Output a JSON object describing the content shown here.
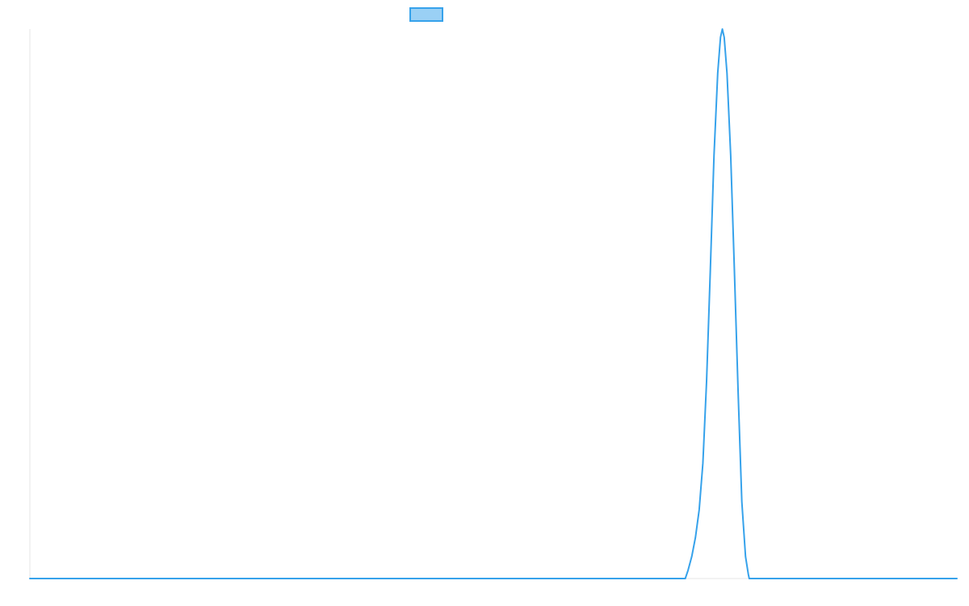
{
  "chart_data": {
    "type": "line",
    "title": "",
    "xlabel": "",
    "ylabel": "",
    "grid": false,
    "legend_position": "top-center",
    "xlim": [
      0,
      100
    ],
    "ylim": [
      0,
      100
    ],
    "series": [
      {
        "name": "",
        "color": "#36a2eb",
        "fill_color": "#9ad0f5",
        "points": [
          [
            0,
            0
          ],
          [
            70.7,
            0
          ],
          [
            71.0,
            1.5
          ],
          [
            71.4,
            4.0
          ],
          [
            71.8,
            7.5
          ],
          [
            72.2,
            12.5
          ],
          [
            72.6,
            21.0
          ],
          [
            73.0,
            36.0
          ],
          [
            73.4,
            56.0
          ],
          [
            73.8,
            77.0
          ],
          [
            74.2,
            92.0
          ],
          [
            74.5,
            98.5
          ],
          [
            74.7,
            100.0
          ],
          [
            74.9,
            98.5
          ],
          [
            75.2,
            92.0
          ],
          [
            75.6,
            77.0
          ],
          [
            76.0,
            56.0
          ],
          [
            76.4,
            34.0
          ],
          [
            76.8,
            14.0
          ],
          [
            77.2,
            4.0
          ],
          [
            77.5,
            0.8
          ],
          [
            77.6,
            0
          ],
          [
            100,
            0
          ]
        ]
      }
    ]
  }
}
